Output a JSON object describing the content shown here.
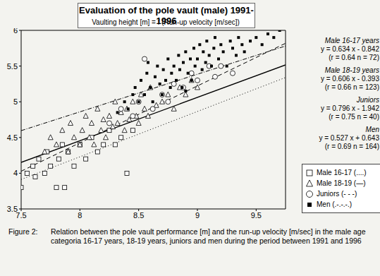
{
  "chart_data": {
    "type": "scatter",
    "title": "Evaluation of the pole vault (male) 1991-1996",
    "subtitle": "Vaulting height [m] = f (Run-up velocity [m/sec])",
    "caption_label": "Figure 2:",
    "caption": "Relation between the pole vault performance [m] and the run-up velocity [m/sec] in the male age categoria 16-17 years, 18-19 years, juniors and men during the period between 1991 and 1996",
    "xlim": [
      7.5,
      9.75
    ],
    "ylim": [
      3.5,
      6
    ],
    "xticks": [
      7.5,
      8,
      8.5,
      9,
      9.5
    ],
    "yticks": [
      3.5,
      4,
      4.5,
      5,
      5.5,
      6
    ],
    "grid": false,
    "series": [
      {
        "name": "Male 16-17",
        "group_label": "Male 16-17 years",
        "legend_note": "(....)",
        "equation": "y = 0.634 x - 0.842",
        "stats": "(r = 0.64   n = 72)",
        "color": "#000000",
        "marker": "square_open",
        "line_style": "dotted",
        "x": [
          7.5,
          7.55,
          7.6,
          7.62,
          7.65,
          7.7,
          7.72,
          7.75,
          7.8,
          7.82,
          7.85,
          7.87,
          7.9,
          7.95,
          8.0,
          8.05,
          8.1,
          8.15,
          8.2,
          8.25,
          8.3,
          8.35,
          8.4,
          8.45
        ],
        "y": [
          3.8,
          4.0,
          4.1,
          3.95,
          4.2,
          4.0,
          4.3,
          4.1,
          3.8,
          4.2,
          4.4,
          3.8,
          4.3,
          4.1,
          4.4,
          4.2,
          4.5,
          4.3,
          4.4,
          4.6,
          4.4,
          4.5,
          4.0,
          4.6
        ],
        "fit_x": [
          7.5,
          9.75
        ],
        "fit_y": [
          3.913,
          5.34
        ]
      },
      {
        "name": "Male 18-19",
        "group_label": "Male 18-19 years",
        "legend_note": "(—)",
        "equation": "y = 0.606 x - 0.393",
        "stats": "(r = 0.66   n = 123)",
        "color": "#000000",
        "marker": "triangle_open",
        "line_style": "solid",
        "x": [
          7.7,
          7.75,
          7.8,
          7.85,
          7.9,
          7.92,
          7.95,
          8.0,
          8.02,
          8.05,
          8.08,
          8.1,
          8.12,
          8.15,
          8.18,
          8.2,
          8.22,
          8.25,
          8.28,
          8.3,
          8.32,
          8.35,
          8.38,
          8.4,
          8.42,
          8.45,
          8.48,
          8.5,
          8.52,
          8.55,
          8.58,
          8.6,
          8.65,
          8.7,
          8.75,
          8.8,
          8.85,
          8.9,
          8.95,
          9.0
        ],
        "y": [
          4.3,
          4.5,
          4.4,
          4.6,
          4.3,
          4.7,
          4.5,
          4.4,
          4.6,
          4.8,
          4.5,
          4.7,
          4.4,
          4.9,
          4.6,
          4.75,
          4.5,
          4.8,
          4.65,
          5.0,
          4.7,
          4.85,
          4.6,
          4.9,
          4.75,
          5.0,
          4.8,
          4.7,
          5.1,
          4.9,
          4.8,
          5.2,
          4.95,
          5.0,
          5.1,
          4.9,
          5.2,
          5.1,
          5.3,
          5.2
        ],
        "fit_x": [
          7.5,
          9.75
        ],
        "fit_y": [
          4.152,
          5.516
        ]
      },
      {
        "name": "Juniors",
        "group_label": "Juniors",
        "legend_note": "(- - -)",
        "equation": "y = 0.796 x - 1.942",
        "stats": "(r = 0.75   n = 40)",
        "color": "#000000",
        "marker": "circle_open",
        "line_style": "dashed",
        "x": [
          8.25,
          8.35,
          8.45,
          8.5,
          8.55,
          8.62,
          8.7,
          8.75,
          8.8,
          8.88,
          8.95,
          9.0,
          9.1,
          9.15,
          9.2,
          9.3
        ],
        "y": [
          4.7,
          4.9,
          4.8,
          5.0,
          5.6,
          4.9,
          5.1,
          5.0,
          5.25,
          5.2,
          5.4,
          5.3,
          5.5,
          5.35,
          5.5,
          5.4
        ],
        "fit_x": [
          7.5,
          9.75
        ],
        "fit_y": [
          4.028,
          5.819
        ]
      },
      {
        "name": "Men",
        "group_label": "Men",
        "legend_note": "(.-.-.-.)",
        "equation": "y = 0.527 x + 0.643",
        "stats": "(r = 0.69   n = 164)",
        "color": "#000000",
        "marker": "square",
        "line_style": "dashdot",
        "x": [
          8.32,
          8.38,
          8.41,
          8.45,
          8.47,
          8.5,
          8.52,
          8.55,
          8.57,
          8.6,
          8.62,
          8.64,
          8.66,
          8.68,
          8.7,
          8.71,
          8.73,
          8.75,
          8.77,
          8.78,
          8.8,
          8.82,
          8.84,
          8.85,
          8.87,
          8.88,
          8.9,
          8.92,
          8.94,
          8.95,
          8.97,
          8.98,
          9.0,
          9.02,
          9.04,
          9.05,
          9.07,
          9.08,
          9.1,
          9.12,
          9.14,
          9.15,
          9.18,
          9.2,
          9.22,
          9.25,
          9.28,
          9.3,
          9.33,
          9.35,
          9.38,
          9.4,
          9.45,
          9.5,
          9.55,
          9.6,
          9.65,
          9.7,
          8.58,
          8.9
        ],
        "y": [
          4.85,
          5.0,
          4.9,
          5.1,
          5.2,
          5.0,
          5.3,
          5.1,
          5.4,
          5.2,
          5.0,
          5.35,
          5.5,
          5.25,
          5.1,
          5.45,
          5.3,
          5.6,
          5.2,
          5.4,
          5.5,
          5.3,
          5.65,
          5.45,
          5.2,
          5.55,
          5.7,
          5.4,
          5.6,
          5.3,
          5.75,
          5.5,
          5.6,
          5.8,
          5.45,
          5.7,
          5.55,
          5.85,
          5.65,
          5.5,
          5.75,
          5.9,
          5.6,
          5.8,
          5.7,
          5.5,
          5.85,
          5.75,
          5.65,
          5.9,
          5.8,
          5.7,
          5.85,
          5.9,
          5.8,
          5.95,
          5.9,
          6.0,
          5.55,
          5.15
        ],
        "fit_x": [
          7.5,
          9.75
        ],
        "fit_y": [
          4.596,
          5.781
        ]
      }
    ]
  }
}
